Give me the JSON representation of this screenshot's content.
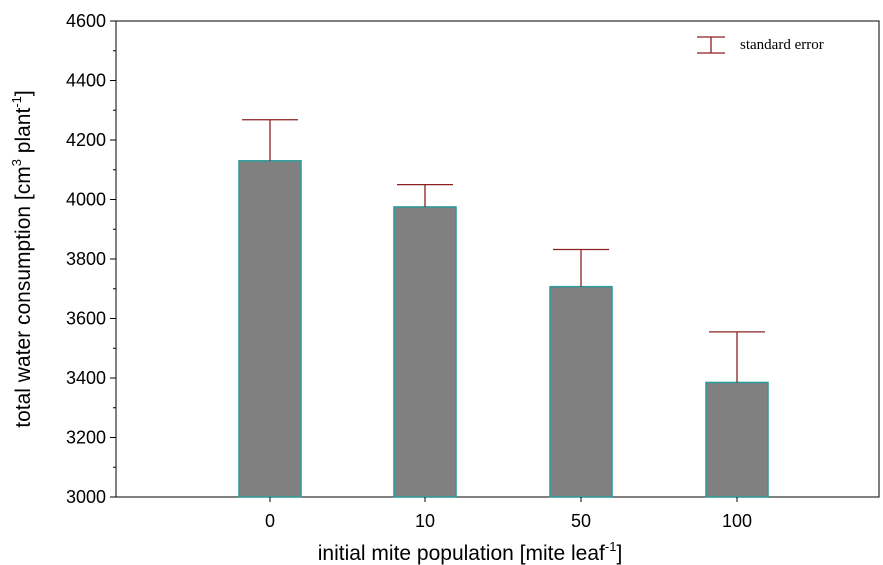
{
  "chart_data": {
    "type": "bar",
    "categories": [
      "0",
      "10",
      "50",
      "100"
    ],
    "values": [
      4130,
      3975,
      3707,
      3385
    ],
    "errors": [
      138,
      75,
      125,
      170
    ],
    "xlabel_parts": [
      "initial mite population [mite leaf",
      "-1",
      "]"
    ],
    "ylabel_parts": [
      "total water consumption [cm",
      "3",
      " plant",
      "-1",
      "]"
    ],
    "ylim": [
      3000,
      4600
    ],
    "yticks": [
      3000,
      3200,
      3400,
      3600,
      3800,
      4000,
      4200,
      4400,
      4600
    ],
    "legend": {
      "label": "standard error",
      "position": "top-right"
    },
    "grid": false,
    "colors": {
      "bar_fill": "#808080",
      "bar_edge": "#2a9a9a",
      "error_bar": "#8b2020",
      "axis": "#000000"
    }
  }
}
